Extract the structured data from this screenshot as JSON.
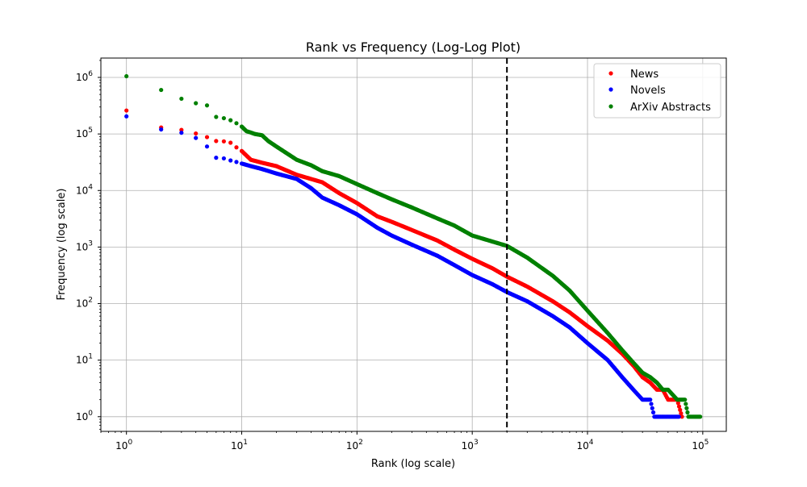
{
  "chart_data": {
    "type": "scatter",
    "title": "Rank vs Frequency (Log-Log Plot)",
    "xlabel": "Rank (log scale)",
    "ylabel": "Frequency (log scale)",
    "xscale": "log",
    "yscale": "log",
    "xlim": [
      0.6,
      160000
    ],
    "ylim": [
      0.55,
      2200000
    ],
    "grid": true,
    "legend_position": "top-right",
    "x_ticks": [
      {
        "value": 1,
        "base": "10",
        "exp": "0"
      },
      {
        "value": 10,
        "base": "10",
        "exp": "1"
      },
      {
        "value": 100,
        "base": "10",
        "exp": "2"
      },
      {
        "value": 1000,
        "base": "10",
        "exp": "3"
      },
      {
        "value": 10000,
        "base": "10",
        "exp": "4"
      },
      {
        "value": 100000,
        "base": "10",
        "exp": "5"
      }
    ],
    "y_ticks": [
      {
        "value": 1,
        "base": "10",
        "exp": "0"
      },
      {
        "value": 10,
        "base": "10",
        "exp": "1"
      },
      {
        "value": 100,
        "base": "10",
        "exp": "2"
      },
      {
        "value": 1000,
        "base": "10",
        "exp": "3"
      },
      {
        "value": 10000,
        "base": "10",
        "exp": "4"
      },
      {
        "value": 100000,
        "base": "10",
        "exp": "5"
      },
      {
        "value": 1000000,
        "base": "10",
        "exp": "6"
      }
    ],
    "vline": {
      "x": 2000,
      "color": "#000000",
      "style": "dashed"
    },
    "series": [
      {
        "name": "News",
        "color": "#ff0000",
        "points": [
          [
            1,
            260000
          ],
          [
            2,
            130000
          ],
          [
            3,
            118000
          ],
          [
            4,
            102000
          ],
          [
            5,
            88000
          ],
          [
            6,
            75000
          ],
          [
            7,
            74000
          ],
          [
            8,
            70000
          ],
          [
            9,
            58000
          ],
          [
            10,
            50000
          ],
          [
            12,
            35000
          ],
          [
            15,
            31000
          ],
          [
            20,
            27000
          ],
          [
            30,
            19000
          ],
          [
            50,
            14000
          ],
          [
            70,
            9000
          ],
          [
            100,
            6000
          ],
          [
            150,
            3500
          ],
          [
            200,
            2800
          ],
          [
            300,
            2000
          ],
          [
            500,
            1300
          ],
          [
            700,
            900
          ],
          [
            1000,
            620
          ],
          [
            1500,
            420
          ],
          [
            2000,
            300
          ],
          [
            3000,
            200
          ],
          [
            5000,
            110
          ],
          [
            7000,
            70
          ],
          [
            10000,
            40
          ],
          [
            15000,
            22
          ],
          [
            20000,
            13
          ],
          [
            25000,
            8
          ],
          [
            30000,
            5
          ],
          [
            35000,
            4
          ],
          [
            40000,
            3
          ],
          [
            45000,
            3
          ],
          [
            50000,
            2
          ],
          [
            55000,
            2
          ],
          [
            60000,
            2
          ],
          [
            66000,
            1
          ]
        ]
      },
      {
        "name": "Novels",
        "color": "#0000ff",
        "points": [
          [
            1,
            205000
          ],
          [
            2,
            120000
          ],
          [
            3,
            105000
          ],
          [
            4,
            85000
          ],
          [
            5,
            60000
          ],
          [
            6,
            38000
          ],
          [
            7,
            37000
          ],
          [
            8,
            34000
          ],
          [
            9,
            32000
          ],
          [
            10,
            30000
          ],
          [
            12,
            27000
          ],
          [
            15,
            24000
          ],
          [
            20,
            20000
          ],
          [
            30,
            16000
          ],
          [
            40,
            11000
          ],
          [
            50,
            7500
          ],
          [
            70,
            5500
          ],
          [
            100,
            3800
          ],
          [
            150,
            2200
          ],
          [
            200,
            1600
          ],
          [
            300,
            1100
          ],
          [
            500,
            700
          ],
          [
            700,
            480
          ],
          [
            1000,
            320
          ],
          [
            1500,
            220
          ],
          [
            2000,
            160
          ],
          [
            3000,
            110
          ],
          [
            5000,
            60
          ],
          [
            7000,
            38
          ],
          [
            10000,
            20
          ],
          [
            15000,
            10
          ],
          [
            20000,
            5
          ],
          [
            25000,
            3
          ],
          [
            30000,
            2
          ],
          [
            35000,
            2
          ],
          [
            38000,
            1
          ],
          [
            45000,
            1
          ],
          [
            55000,
            1
          ],
          [
            62000,
            1
          ]
        ]
      },
      {
        "name": "ArXiv Abstracts",
        "color": "#008000",
        "points": [
          [
            1,
            1050000
          ],
          [
            2,
            600000
          ],
          [
            3,
            420000
          ],
          [
            4,
            350000
          ],
          [
            5,
            320000
          ],
          [
            6,
            200000
          ],
          [
            7,
            190000
          ],
          [
            8,
            175000
          ],
          [
            9,
            155000
          ],
          [
            10,
            135000
          ],
          [
            11,
            112000
          ],
          [
            12,
            106000
          ],
          [
            13,
            100000
          ],
          [
            15,
            95000
          ],
          [
            17,
            75000
          ],
          [
            20,
            60000
          ],
          [
            30,
            35000
          ],
          [
            40,
            28000
          ],
          [
            50,
            22000
          ],
          [
            70,
            18000
          ],
          [
            100,
            13000
          ],
          [
            150,
            9000
          ],
          [
            200,
            7000
          ],
          [
            300,
            5000
          ],
          [
            500,
            3200
          ],
          [
            700,
            2400
          ],
          [
            1000,
            1600
          ],
          [
            1500,
            1250
          ],
          [
            2000,
            1050
          ],
          [
            3000,
            650
          ],
          [
            5000,
            310
          ],
          [
            7000,
            170
          ],
          [
            10000,
            75
          ],
          [
            15000,
            30
          ],
          [
            20000,
            15
          ],
          [
            25000,
            9
          ],
          [
            30000,
            6
          ],
          [
            35000,
            5
          ],
          [
            40000,
            4
          ],
          [
            45000,
            3
          ],
          [
            50000,
            3
          ],
          [
            60000,
            2
          ],
          [
            65000,
            2
          ],
          [
            70000,
            2
          ],
          [
            75000,
            1
          ],
          [
            85000,
            1
          ],
          [
            95000,
            1
          ]
        ]
      }
    ]
  }
}
